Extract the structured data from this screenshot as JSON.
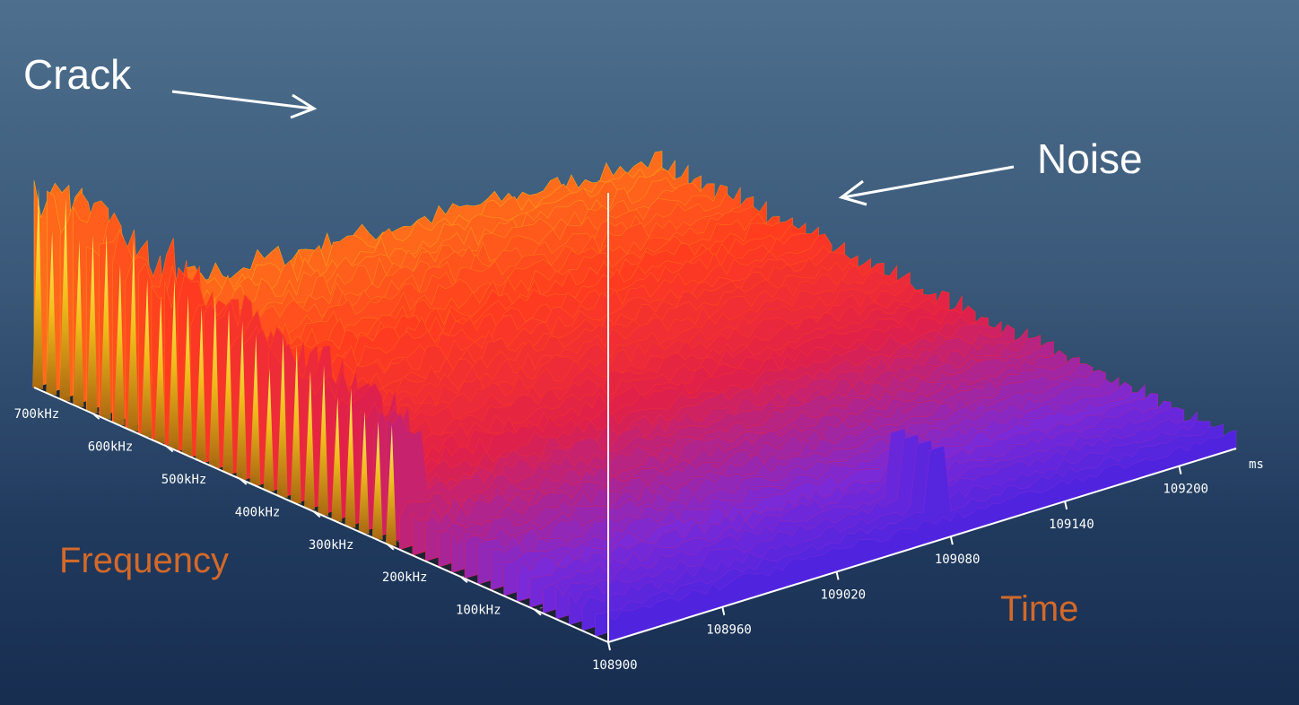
{
  "chart_data": {
    "type": "surface-3d",
    "title": "",
    "annotations": [
      {
        "text": "Crack",
        "target": "tall yellow spike ridge near 108900 ms"
      },
      {
        "text": "Noise",
        "target": "broad red plateau across frequencies"
      }
    ],
    "xlabel": "Time",
    "x_unit": "ms",
    "x_ticks": [
      "108900",
      "108960",
      "109020",
      "109080",
      "109140",
      "109200"
    ],
    "xlim": [
      108900,
      109230
    ],
    "ylabel": "Frequency",
    "y_ticks": [
      "100kHz",
      "200kHz",
      "300kHz",
      "400kHz",
      "500kHz",
      "600kHz",
      "700kHz"
    ],
    "ylim": [
      0,
      780
    ],
    "colormap": [
      "#2a1ee6",
      "#7a2ad8",
      "#e0204a",
      "#ff3b1e",
      "#ff7a1a",
      "#ffd21a",
      "#ffff5a"
    ],
    "features": [
      {
        "name": "Crack",
        "time_ms": 108900,
        "freq_range_khz": [
          300,
          780
        ],
        "relative_amplitude": 1.0
      },
      {
        "name": "Noise",
        "time_range_ms": [
          108900,
          109230
        ],
        "freq_range_khz": [
          150,
          780
        ],
        "relative_amplitude": 0.35
      },
      {
        "name": "spike",
        "time_ms": 109080,
        "freq_khz": 40,
        "relative_amplitude": 0.45
      }
    ]
  },
  "labels": {
    "crack": "Crack",
    "noise": "Noise",
    "frequency": "Frequency",
    "time": "Time",
    "unit": "ms"
  },
  "colors": {
    "axis_title": "#d2692a",
    "annotation": "#ffffff"
  }
}
